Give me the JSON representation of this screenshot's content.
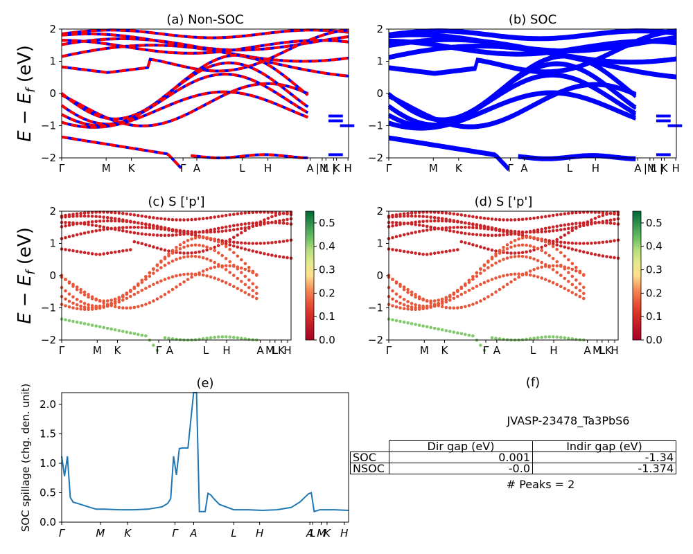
{
  "chart_data": [
    {
      "type": "line",
      "title": "(a) Non-SOC",
      "ylabel": "E − E_f (eV)",
      "ylim": [
        -2,
        2
      ],
      "yticks": [
        "2",
        "1",
        "0",
        "−1",
        "−2"
      ],
      "kpath_labels": [
        "Γ",
        "M",
        "K",
        "Γ",
        "A",
        "L",
        "H",
        "A",
        "|M",
        "L",
        "|",
        "K",
        "H"
      ],
      "kpath_positions": [
        0,
        0.155,
        0.243,
        0.423,
        0.471,
        0.629,
        0.719,
        0.866,
        0.908,
        0.921,
        0.948,
        0.958,
        0.998
      ],
      "series": [
        {
          "values_description": "spin-up (blue) and spin-down (red dashed) bands overlapping",
          "colors": [
            "#0000ff",
            "#ff0000"
          ]
        }
      ]
    },
    {
      "type": "line",
      "title": "(b) SOC",
      "ylim": [
        -2,
        2
      ],
      "yticks": [
        "2",
        "1",
        "0",
        "−1",
        "−2"
      ],
      "kpath_labels": [
        "Γ",
        "M",
        "K",
        "Γ",
        "A",
        "L",
        "H",
        "A",
        "|M",
        "L",
        "|",
        "K",
        "H"
      ],
      "series": [
        {
          "colors": [
            "#0000ff"
          ]
        }
      ]
    },
    {
      "type": "scatter",
      "title": "(c)  S ['p']",
      "ylabel": "E − E_f (eV)",
      "ylim": [
        -2,
        2
      ],
      "colorbar": {
        "min": 0.0,
        "max": 0.55,
        "ticks": [
          "0.0",
          "0.1",
          "0.2",
          "0.3",
          "0.4",
          "0.5"
        ],
        "cmap": "RdYlGn"
      },
      "kpath_labels": [
        "Γ",
        "M",
        "K",
        "Γ",
        "A",
        "L",
        "H",
        "A",
        "M",
        "L",
        "K",
        "H"
      ]
    },
    {
      "type": "scatter",
      "title": "(d) S ['p']",
      "ylim": [
        -2,
        2
      ],
      "colorbar": {
        "min": 0.0,
        "max": 0.55,
        "ticks": [
          "0.0",
          "0.1",
          "0.2",
          "0.3",
          "0.4",
          "0.5"
        ],
        "cmap": "RdYlGn"
      },
      "kpath_labels": [
        "Γ",
        "M",
        "K",
        "Γ",
        "A",
        "L",
        "H",
        "A",
        "M",
        "L",
        "K",
        "H"
      ]
    },
    {
      "type": "line",
      "title": "(e)",
      "ylabel": "SOC spillage (chg. den. unit)",
      "ylim": [
        0,
        2.2
      ],
      "yticks": [
        "0.0",
        "0.5",
        "1.0",
        "1.5",
        "2.0"
      ],
      "kpath_labels": [
        "Γ",
        "M",
        "K",
        "Γ",
        "A",
        "L",
        "H",
        "A",
        "L",
        "M",
        "K",
        "H"
      ],
      "x": [
        0,
        0.01,
        0.02,
        0.03,
        0.04,
        0.06,
        0.08,
        0.1,
        0.12,
        0.15,
        0.2,
        0.25,
        0.3,
        0.35,
        0.37,
        0.38,
        0.39,
        0.4,
        0.41,
        0.42,
        0.44,
        0.46,
        0.47,
        0.48,
        0.5,
        0.51,
        0.52,
        0.53,
        0.55,
        0.6,
        0.65,
        0.7,
        0.75,
        0.8,
        0.83,
        0.86,
        0.87,
        0.88,
        0.9,
        0.95,
        1.0
      ],
      "values": [
        1.12,
        0.78,
        1.12,
        0.42,
        0.34,
        0.31,
        0.28,
        0.25,
        0.22,
        0.22,
        0.21,
        0.21,
        0.22,
        0.26,
        0.32,
        0.4,
        1.12,
        0.8,
        1.25,
        1.26,
        1.26,
        2.2,
        2.2,
        0.18,
        0.18,
        0.49,
        0.46,
        0.4,
        0.3,
        0.21,
        0.21,
        0.2,
        0.21,
        0.25,
        0.34,
        0.48,
        0.5,
        0.18,
        0.21,
        0.21,
        0.2
      ],
      "color": "#1f77b4"
    }
  ],
  "table": {
    "title": "(f)",
    "caption": "JVASP-23478_Ta3PbS6",
    "headers": [
      "",
      "Dir gap (eV)",
      "Indir gap (eV)"
    ],
    "rows": [
      [
        "SOC",
        "0.001",
        "-1.34"
      ],
      [
        "NSOC",
        "-0.0",
        "-1.374"
      ]
    ],
    "footer": "# Peaks = 2"
  },
  "labels": {
    "ylabel_top": "E − E",
    "ylabel_sub": "f",
    "ylabel_unit": " (eV)",
    "e_ylabel": "SOC spillage (chg. den. unit)"
  }
}
